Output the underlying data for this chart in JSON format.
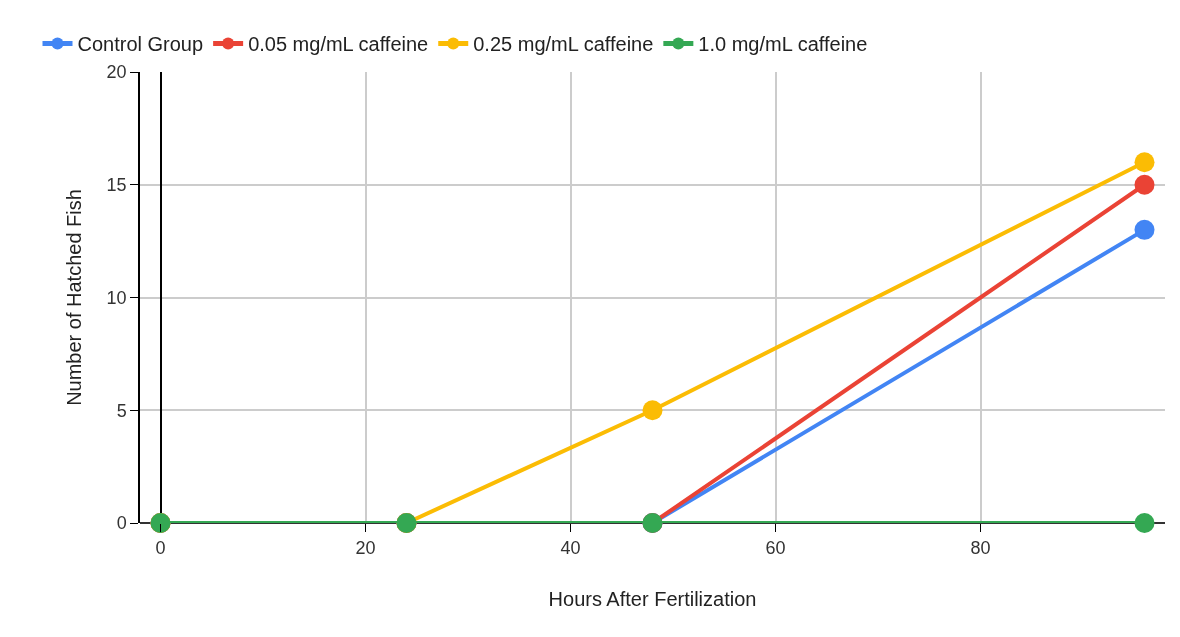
{
  "chart_data": {
    "type": "line",
    "xlabel": "Hours After Fertilization",
    "ylabel": "Number of Hatched Fish",
    "x": [
      0,
      24,
      48,
      96
    ],
    "series": [
      {
        "name": "Control Group",
        "color": "#4285f4",
        "values": [
          0,
          0,
          0,
          13
        ]
      },
      {
        "name": "0.05 mg/mL caffeine",
        "color": "#ea4335",
        "values": [
          0,
          0,
          0,
          15
        ]
      },
      {
        "name": "0.25 mg/mL caffeine",
        "color": "#fbbc04",
        "values": [
          0,
          0,
          5,
          16
        ]
      },
      {
        "name": "1.0 mg/mL caffeine",
        "color": "#34a853",
        "values": [
          0,
          0,
          0,
          0
        ]
      }
    ],
    "xlim": [
      -2,
      98
    ],
    "ylim": [
      0,
      20
    ],
    "xticks": [
      0,
      20,
      40,
      60,
      80
    ],
    "yticks": [
      0,
      5,
      10,
      15,
      20
    ],
    "grid": true,
    "legend": "top left",
    "marker": "circle",
    "line_style": "solid"
  }
}
